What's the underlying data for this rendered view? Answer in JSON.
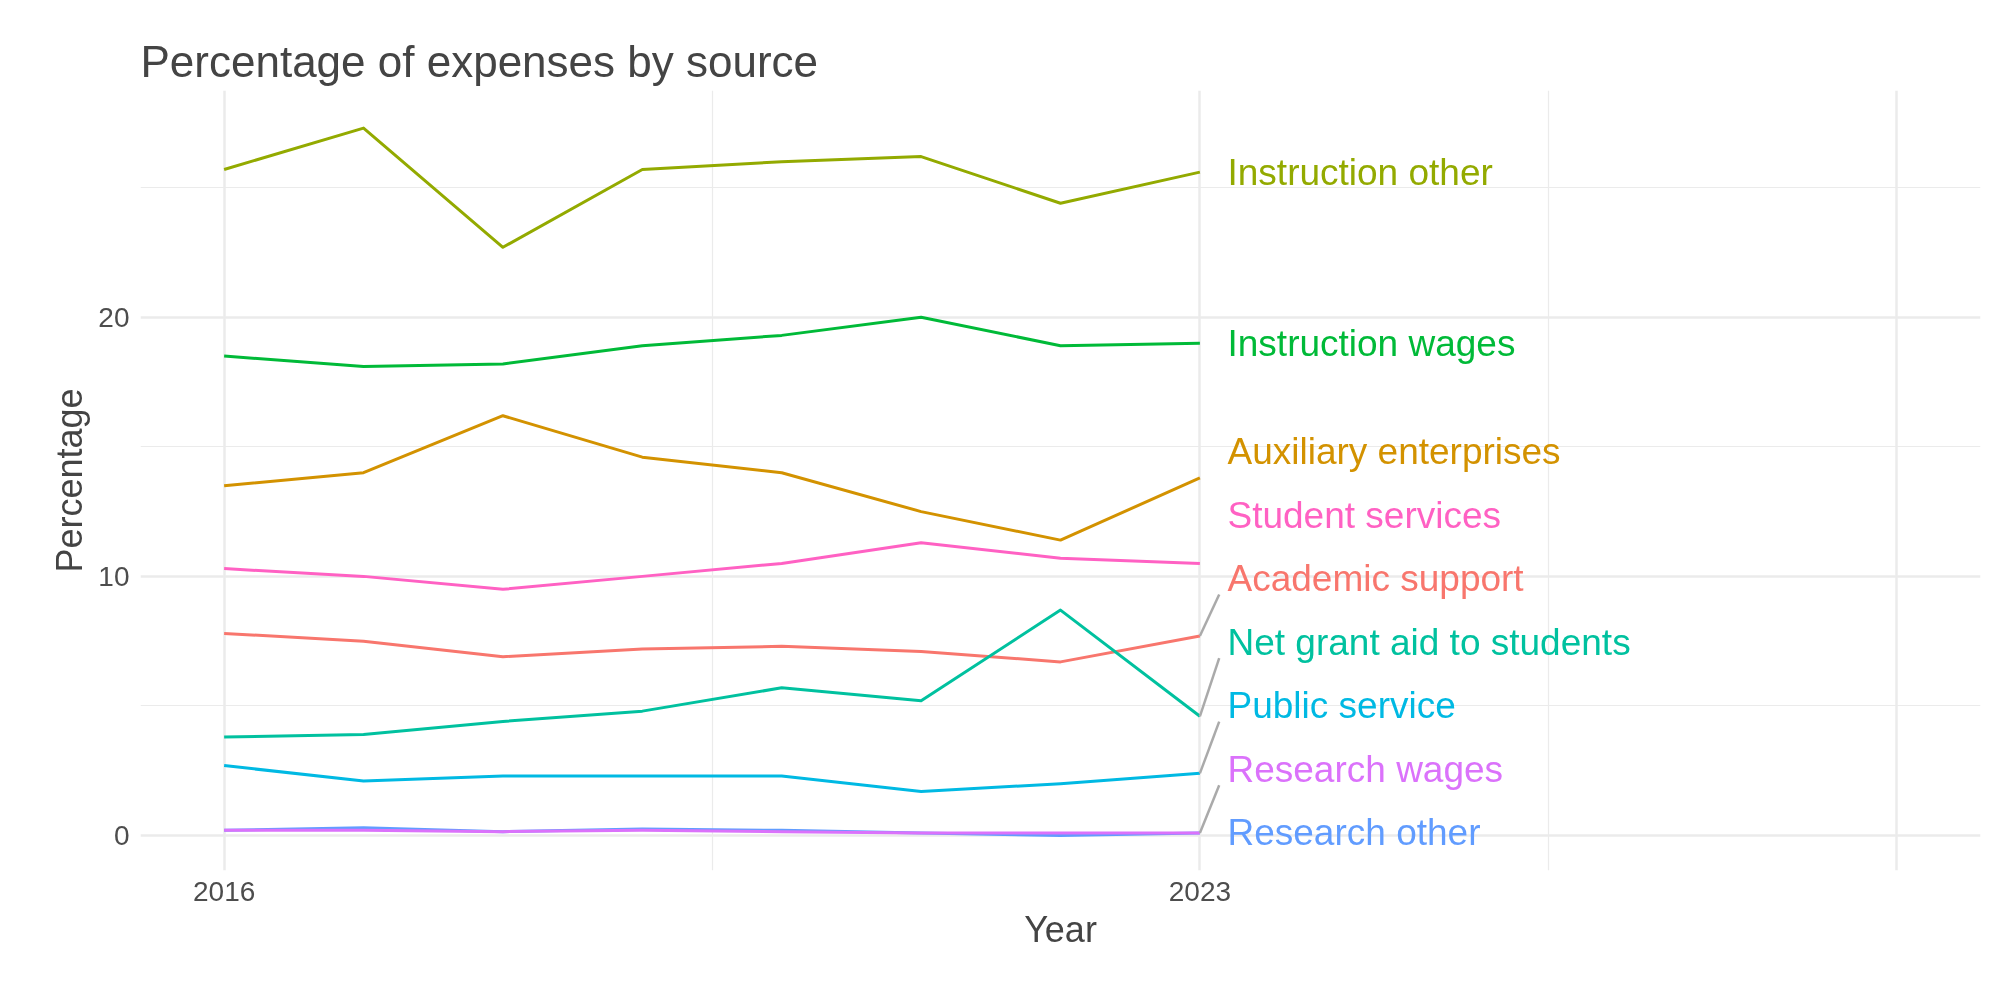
{
  "chart_data": {
    "type": "line",
    "title": "Percentage of expenses by source",
    "xlabel": "Year",
    "ylabel": "Percentage",
    "x": [
      2016,
      2017,
      2018,
      2019,
      2020,
      2021,
      2022,
      2023
    ],
    "xlim": [
      2015.4,
      2028.6
    ],
    "xticks": [
      2016,
      2023,
      {
        "value": 2028,
        "label": null
      }
    ],
    "ylim": [
      -1.35,
      28.75
    ],
    "yticks": [
      0,
      10,
      20
    ],
    "grid": true,
    "legend": false,
    "series": [
      {
        "name": "Academic support",
        "color": "#f8766d",
        "values": [
          7.8,
          7.5,
          6.9,
          7.2,
          7.3,
          7.1,
          6.7,
          7.7
        ]
      },
      {
        "name": "Auxiliary enterprises",
        "color": "#d39200",
        "values": [
          13.5,
          14.0,
          16.2,
          14.6,
          14.0,
          12.5,
          11.4,
          13.8
        ]
      },
      {
        "name": "Instruction other",
        "color": "#93aa00",
        "values": [
          25.7,
          27.3,
          22.7,
          25.7,
          26.0,
          26.2,
          24.4,
          25.6
        ]
      },
      {
        "name": "Instruction wages",
        "color": "#00ba38",
        "values": [
          18.5,
          18.1,
          18.2,
          18.9,
          19.3,
          20.0,
          18.9,
          19.0
        ]
      },
      {
        "name": "Net grant aid to students",
        "color": "#00c19f",
        "values": [
          3.8,
          3.9,
          4.4,
          4.8,
          5.7,
          5.2,
          8.7,
          4.6
        ]
      },
      {
        "name": "Public service",
        "color": "#00b9e3",
        "values": [
          2.7,
          2.1,
          2.3,
          2.3,
          2.3,
          1.7,
          2.0,
          2.4
        ]
      },
      {
        "name": "Research other",
        "color": "#619cff",
        "values": [
          0.2,
          0.3,
          0.15,
          0.25,
          0.2,
          0.1,
          0.0,
          0.1
        ]
      },
      {
        "name": "Research wages",
        "color": "#db72fb",
        "values": [
          0.2,
          0.2,
          0.15,
          0.2,
          0.15,
          0.1,
          0.1,
          0.1
        ]
      },
      {
        "name": "Student services",
        "color": "#ff61c3",
        "values": [
          10.3,
          10.0,
          9.5,
          10.0,
          10.5,
          11.3,
          10.7,
          10.5
        ]
      }
    ]
  }
}
